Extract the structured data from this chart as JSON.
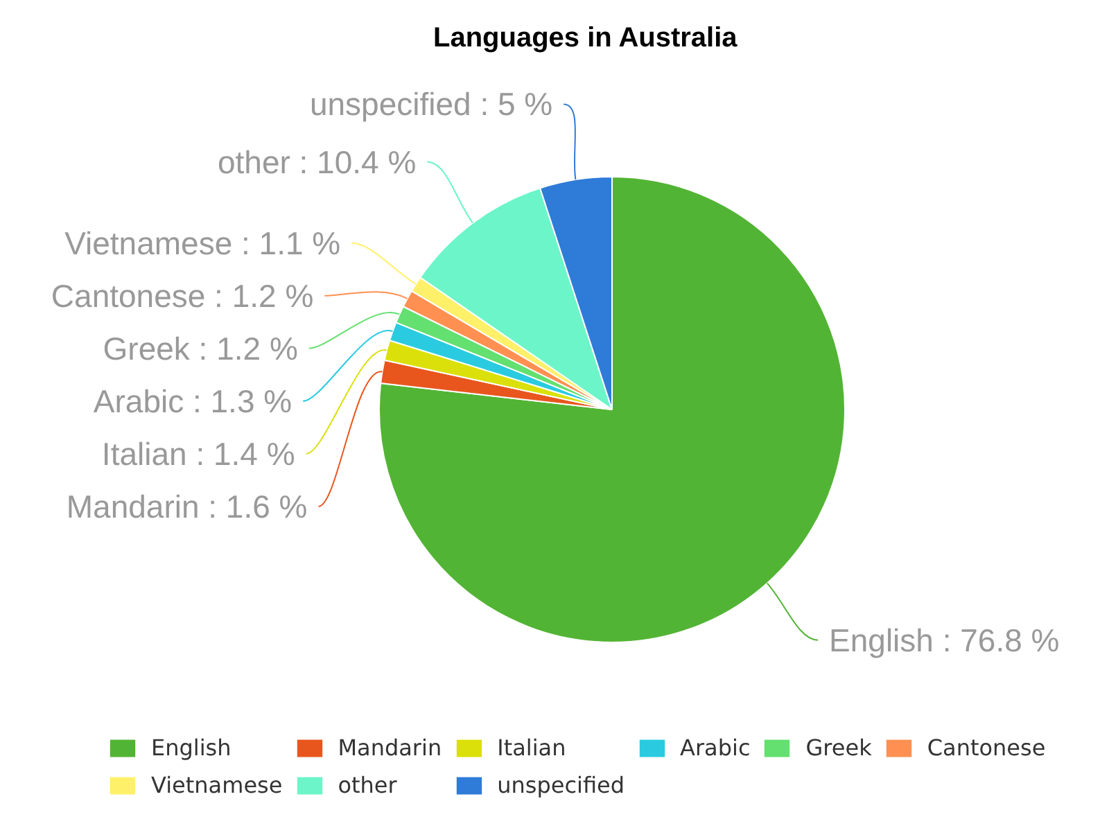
{
  "chart_data": {
    "type": "pie",
    "title": "Languages in Australia",
    "categories": [
      "English",
      "Mandarin",
      "Italian",
      "Arabic",
      "Greek",
      "Cantonese",
      "Vietnamese",
      "other",
      "unspecified"
    ],
    "values": [
      76.8,
      1.6,
      1.4,
      1.3,
      1.2,
      1.2,
      1.1,
      10.4,
      5
    ],
    "colors": [
      "#52b434",
      "#e8561e",
      "#dbe00b",
      "#2acbe0",
      "#63e070",
      "#ff9052",
      "#fff06a",
      "#6cf5c8",
      "#2f7bd8"
    ],
    "value_labels": [
      "English : 76.8 %",
      "Mandarin : 1.6 %",
      "Italian : 1.4 %",
      "Arabic : 1.3 %",
      "Greek : 1.2 %",
      "Cantonese : 1.2 %",
      "Vietnamese : 1.1 %",
      "other : 10.4 %",
      "unspecified : 5 %"
    ],
    "legend": "bottom"
  }
}
